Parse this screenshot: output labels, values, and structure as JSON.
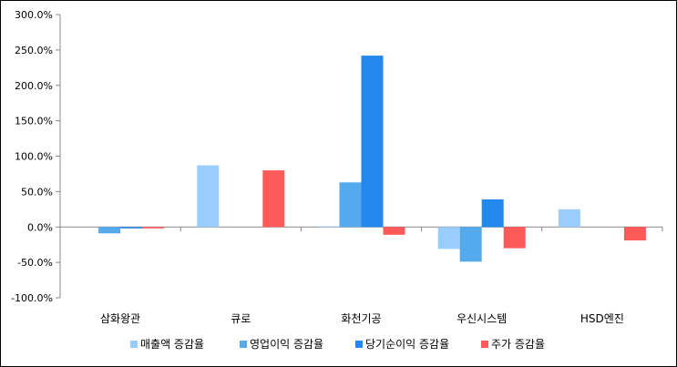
{
  "chart_data": {
    "type": "bar",
    "title": "",
    "xlabel": "",
    "ylabel": "",
    "categories": [
      "삼화왕관",
      "큐로",
      "화천기공",
      "우신시스템",
      "HSD엔진"
    ],
    "series": [
      {
        "name": "매출액 증감율",
        "color": "#99ccff",
        "values": [
          null,
          87.0,
          1.0,
          -31.0,
          25.0
        ]
      },
      {
        "name": "영업이익 증감율",
        "color": "#55aaee",
        "values": [
          -9.0,
          null,
          63.0,
          -49.0,
          null
        ]
      },
      {
        "name": "당기순이익 증감율",
        "color": "#2288ee",
        "values": [
          -2.0,
          null,
          242.0,
          39.0,
          null
        ]
      },
      {
        "name": "주가 증감율",
        "color": "#ff5a5a",
        "values": [
          -2.0,
          80.0,
          -11.0,
          -30.0,
          -19.0
        ]
      }
    ],
    "ylim": [
      -100,
      300
    ],
    "y_ticks": [
      "-100.0%",
      "-50.0%",
      "0.0%",
      "50.0%",
      "100.0%",
      "150.0%",
      "200.0%",
      "250.0%",
      "300.0%"
    ],
    "grid": false,
    "legend_position": "bottom"
  }
}
